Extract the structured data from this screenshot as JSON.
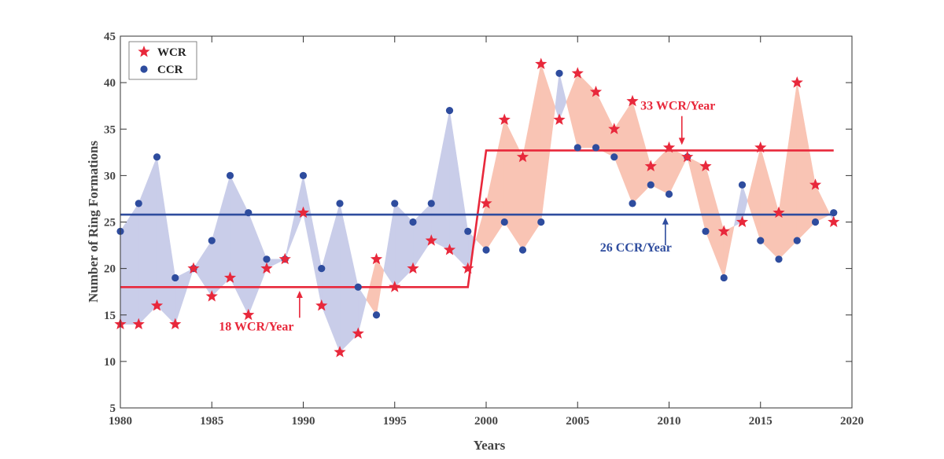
{
  "chart_data": {
    "type": "scatter",
    "title": "",
    "xlabel": "Years",
    "ylabel": "Number of Ring Formations",
    "xlim": [
      1980,
      2020
    ],
    "ylim": [
      5,
      45
    ],
    "xticks": [
      1980,
      1985,
      1990,
      1995,
      2000,
      2005,
      2010,
      2015,
      2020
    ],
    "yticks": [
      5,
      10,
      15,
      20,
      25,
      30,
      35,
      40,
      45
    ],
    "grid": false,
    "legend_position": "top-left",
    "x": [
      1980,
      1981,
      1982,
      1983,
      1984,
      1985,
      1986,
      1987,
      1988,
      1989,
      1990,
      1991,
      1992,
      1993,
      1994,
      1995,
      1996,
      1997,
      1998,
      1999,
      2000,
      2001,
      2002,
      2003,
      2004,
      2005,
      2006,
      2007,
      2008,
      2009,
      2010,
      2011,
      2012,
      2013,
      2014,
      2015,
      2016,
      2017,
      2018,
      2019
    ],
    "series": [
      {
        "name": "WCR",
        "marker": "star",
        "color": "#e8283b",
        "values": [
          14,
          14,
          16,
          14,
          20,
          17,
          19,
          15,
          20,
          21,
          26,
          16,
          11,
          13,
          21,
          18,
          20,
          23,
          22,
          20,
          27,
          36,
          32,
          42,
          36,
          41,
          39,
          35,
          38,
          31,
          33,
          32,
          31,
          24,
          25,
          33,
          26,
          40,
          29,
          25
        ]
      },
      {
        "name": "CCR",
        "marker": "circle",
        "color": "#2e4c9e",
        "values": [
          24,
          27,
          32,
          19,
          20,
          23,
          30,
          26,
          21,
          21,
          30,
          20,
          27,
          18,
          15,
          27,
          25,
          27,
          37,
          24,
          22,
          25,
          22,
          25,
          41,
          33,
          33,
          32,
          27,
          29,
          28,
          32,
          24,
          19,
          29,
          23,
          21,
          23,
          25,
          26
        ]
      }
    ],
    "fill_colors": {
      "ccr_above": "#c9cde9",
      "wcr_above": "#f9c4b4"
    },
    "trend_lines": [
      {
        "series": "WCR",
        "color": "#e8283b",
        "segments": [
          [
            1980,
            1999,
            18
          ],
          [
            2000,
            2019,
            32.7
          ]
        ]
      },
      {
        "series": "CCR",
        "color": "#2e4c9e",
        "segments": [
          [
            1980,
            2019,
            25.8
          ]
        ]
      }
    ],
    "annotations": [
      {
        "text": "18 WCR/Year",
        "color": "#e8283b",
        "arrow_x": 1989.8,
        "arrow_from_y": 14.7,
        "arrow_to_y": 17.6
      },
      {
        "text": "33 WCR/Year",
        "color": "#e8283b",
        "arrow_x": 2010.7,
        "arrow_from_y": 36.4,
        "arrow_to_y": 33.3
      },
      {
        "text": "26 CCR/Year",
        "color": "#2e4c9e",
        "arrow_x": 2009.8,
        "arrow_from_y": 22.5,
        "arrow_to_y": 25.5
      }
    ]
  }
}
